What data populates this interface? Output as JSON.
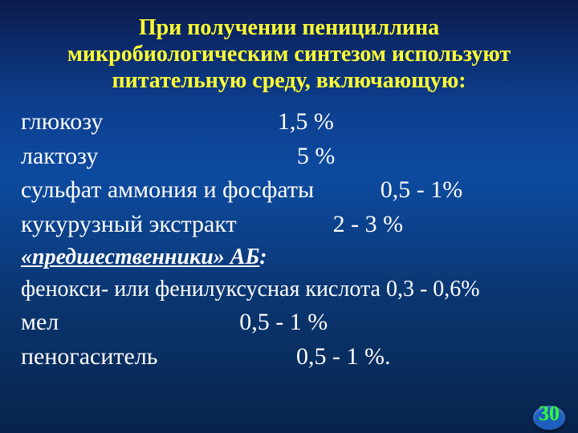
{
  "colors": {
    "title": "#ffff33",
    "body": "#ffffff",
    "pagenum": "#33ff33",
    "pagenum_oval": "#1e5fbf",
    "bg_gradient_top": "#0b1a4a",
    "bg_gradient_bottom": "#08244c"
  },
  "title_fontsize": 28,
  "body_fontsize": 30,
  "title": {
    "l1": "При получении пенициллина",
    "l2": "микробиологическим синтезом используют",
    "l3": "питательную среду, включающую:"
  },
  "lines": {
    "l1": "глюкозу                             1,5 %",
    "l2": "лактозу                                 5 %",
    "l3": "сульфат аммония и фосфаты           0,5 - 1%",
    "l4": "кукурузный экстракт                2 - 3 %"
  },
  "subheader": {
    "underlined": "«предшественники» АБ",
    "tail": ":"
  },
  "lines2": {
    "l5": "фенокси- или фенилуксусная кислота 0,3 - 0,6%",
    "l6": "мел                              0,5 - 1 %",
    "l7": "пеногаситель                       0,5 - 1 %."
  },
  "page_number": "30"
}
